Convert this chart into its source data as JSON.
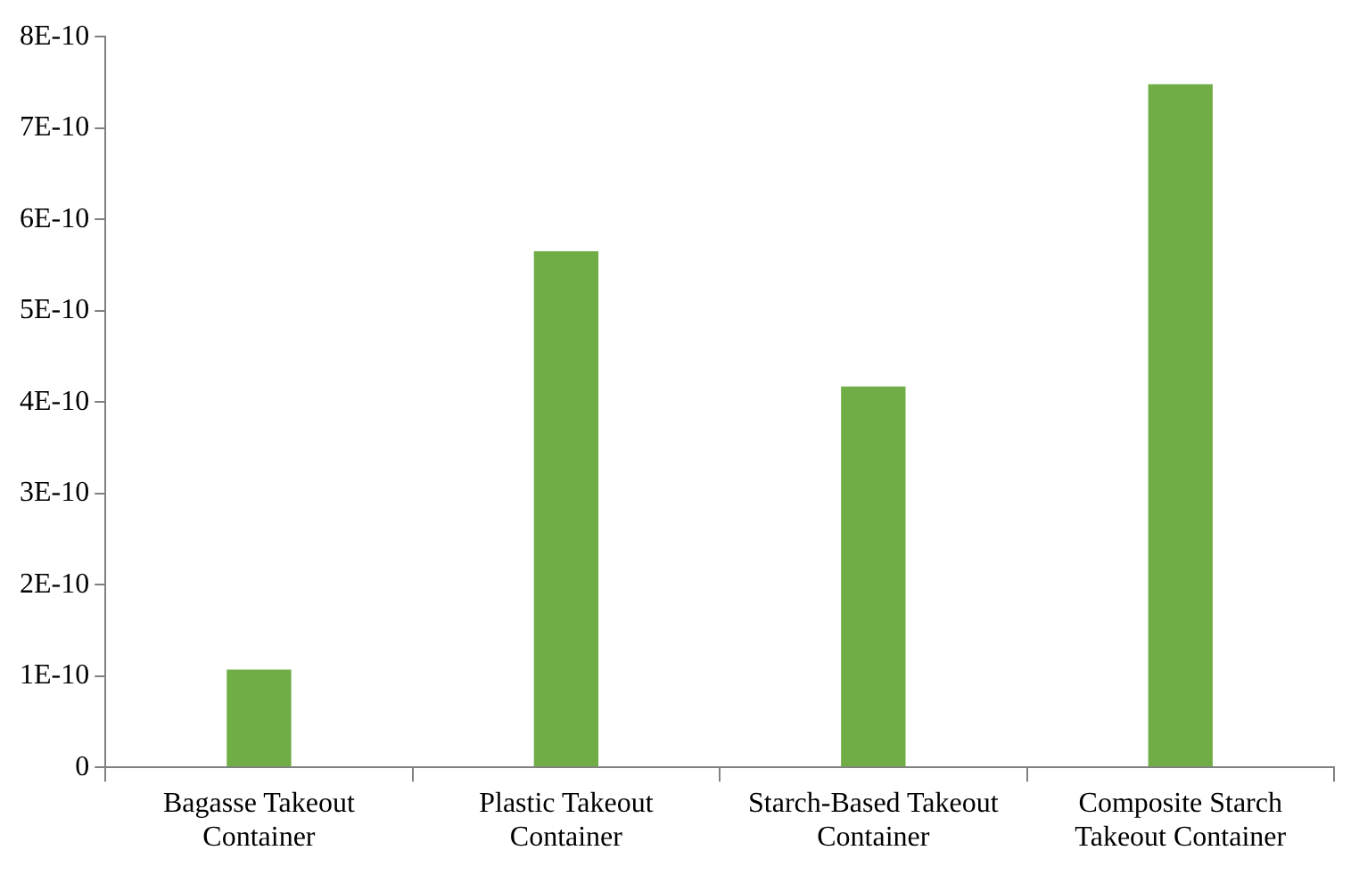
{
  "chart_data": {
    "type": "bar",
    "categories": [
      "Bagasse Takeout Container",
      "Plastic Takeout Container",
      "Starch-Based Takeout Container",
      "Composite Starch Takeout Container"
    ],
    "values": [
      1.07e-10,
      5.65e-10,
      4.17e-10,
      7.48e-10
    ],
    "color": "#70ad47",
    "ylim": [
      0,
      8e-10
    ],
    "yticks": [
      0,
      {
        "value": 1e-10,
        "label": "1E-10"
      },
      {
        "value": 2e-10,
        "label": "2E-10"
      },
      {
        "value": 3e-10,
        "label": "3E-10"
      },
      {
        "value": 4e-10,
        "label": "4E-10"
      },
      {
        "value": 5e-10,
        "label": "5E-10"
      },
      {
        "value": 6e-10,
        "label": "6E-10"
      },
      {
        "value": 7e-10,
        "label": "7E-10"
      },
      {
        "value": 8e-10,
        "label": "8E-10"
      }
    ],
    "grid": false,
    "legend": false
  }
}
